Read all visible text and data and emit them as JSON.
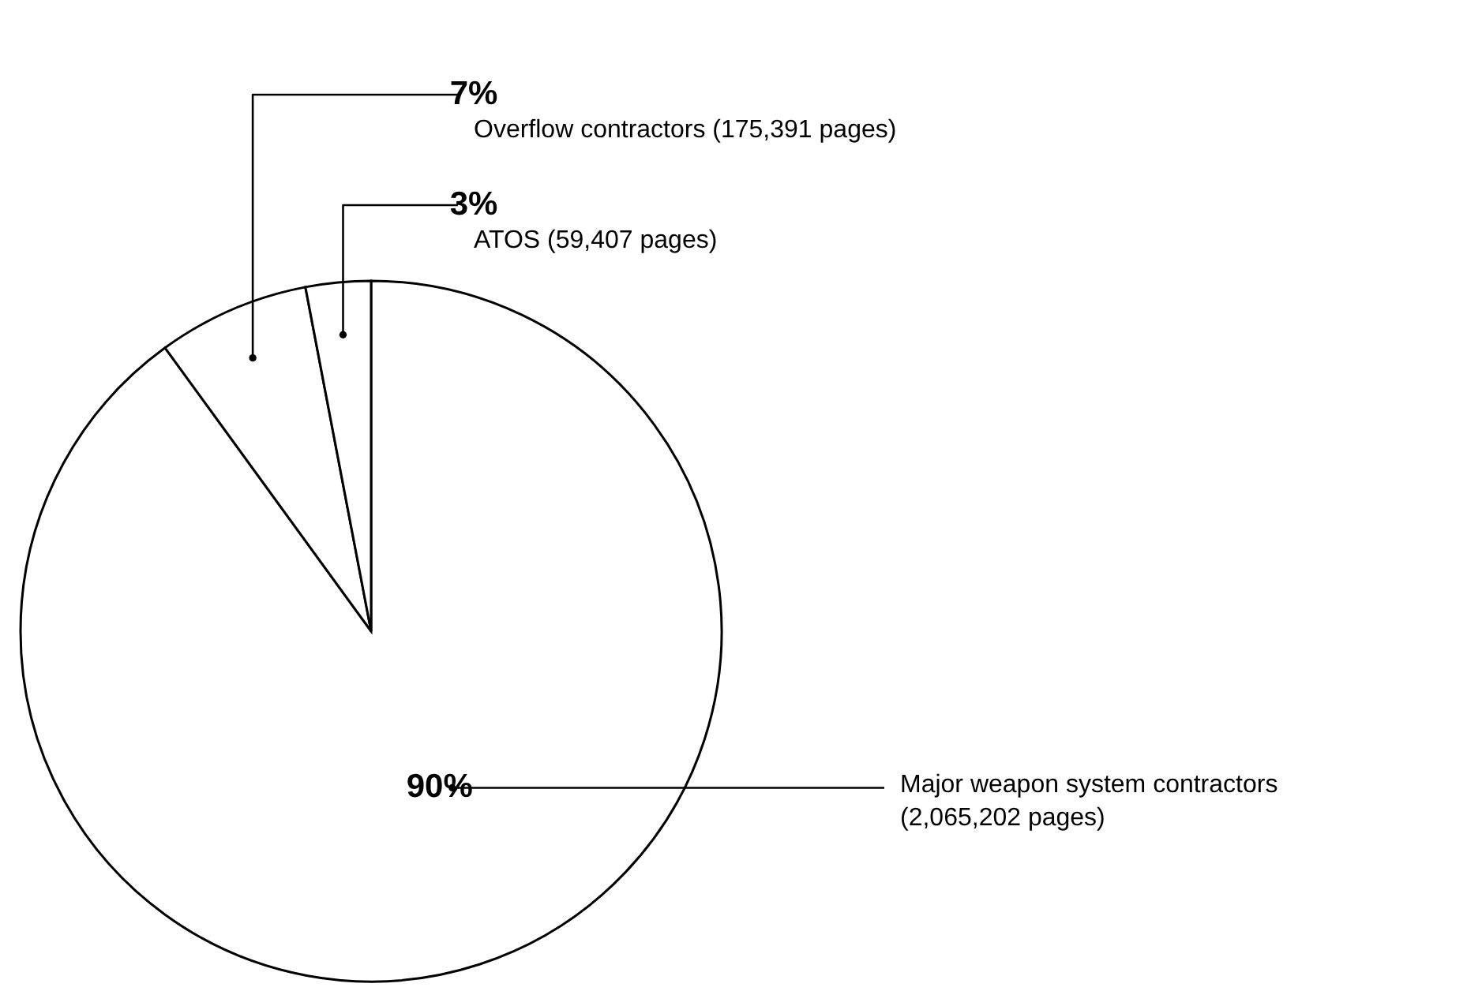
{
  "chart_data": {
    "type": "pie",
    "categories": [
      "Major weapon system contractors (2,065,202 pages)",
      "Overflow contractors (175,391 pages)",
      "ATOS (59,407 pages)"
    ],
    "values": [
      90,
      7,
      3
    ],
    "value_labels": [
      "90%",
      "7%",
      "3%"
    ],
    "colors": [
      "#ffffff",
      "#ffffff",
      "#ffffff"
    ]
  }
}
